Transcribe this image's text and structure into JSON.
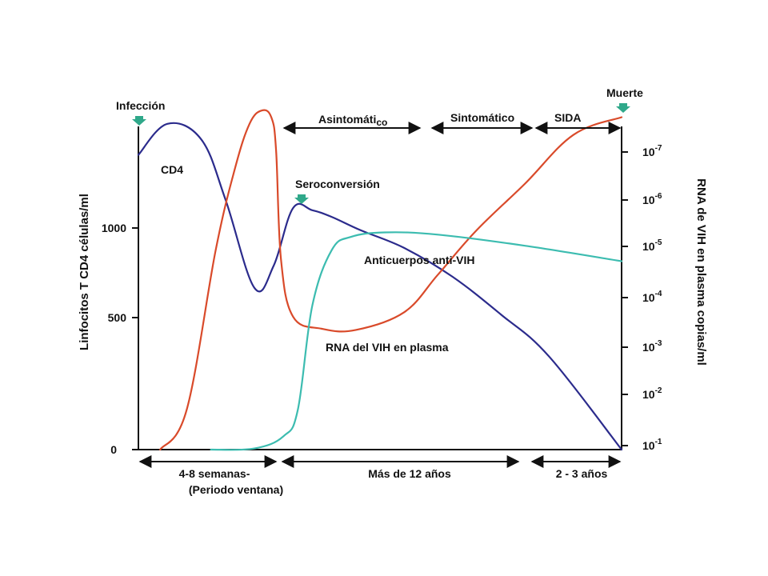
{
  "chart_data": {
    "type": "line",
    "title": "",
    "x_axis": {
      "visible": false,
      "ticks": []
    },
    "y_left": {
      "label": "Linfocitos T CD4 células/ml",
      "ticks": [
        "0",
        "500",
        "1000"
      ],
      "range": [
        0,
        1250
      ]
    },
    "y_right": {
      "label": "RNA de VIH en plasma copias/ml",
      "ticks": [
        {
          "base": "10",
          "exp": "-1"
        },
        {
          "base": "10",
          "exp": "-2"
        },
        {
          "base": "10",
          "exp": "-3"
        },
        {
          "base": "10",
          "exp": "-4"
        },
        {
          "base": "10",
          "exp": "-5"
        },
        {
          "base": "10",
          "exp": "-6"
        },
        {
          "base": "10",
          "exp": "-7"
        }
      ]
    },
    "series": [
      {
        "name": "CD4",
        "axis": "left",
        "color": "#2b2b8c",
        "x": [
          0,
          6,
          13,
          18,
          24,
          28,
          32,
          36,
          40,
          46,
          55,
          65,
          75,
          85,
          100
        ],
        "y": [
          1330,
          1470,
          1400,
          1130,
          730,
          830,
          1090,
          1080,
          1050,
          990,
          910,
          780,
          610,
          420,
          0
        ]
      },
      {
        "name": "RNA del VIH en plasma",
        "axis": "left",
        "color": "#d94a2a",
        "x": [
          4.5,
          10,
          16,
          20,
          23,
          25.5,
          27.5,
          28.5,
          29.5,
          32,
          38,
          45,
          55,
          62,
          70,
          80,
          90,
          100
        ],
        "y": [
          0,
          180,
          900,
          1270,
          1470,
          1530,
          1500,
          1350,
          860,
          600,
          545,
          540,
          620,
          790,
          990,
          1200,
          1420,
          1500
        ]
      },
      {
        "name": "Anticuerpos anti-VIH",
        "axis": "left",
        "color": "#3cbcb0",
        "x": [
          15,
          24,
          30,
          33,
          36,
          40,
          44,
          51,
          62,
          80,
          100
        ],
        "y": [
          0,
          5,
          60,
          180,
          650,
          900,
          960,
          980,
          970,
          920,
          850
        ]
      }
    ],
    "annotations": [
      {
        "id": "infeccion",
        "text": "Infección",
        "marker": "arrow-down"
      },
      {
        "id": "muerte",
        "text": "Muerte",
        "marker": "arrow-down"
      },
      {
        "id": "seroconversion",
        "text": "Seroconversión",
        "marker": "arrow-down"
      },
      {
        "id": "cd4",
        "text": "CD4"
      },
      {
        "id": "anticuerpos",
        "text": "Anticuerpos anti-VIH"
      },
      {
        "id": "rna",
        "text": "RNA del VIH en plasma"
      }
    ],
    "phases_top": [
      {
        "id": "asintomatico",
        "main": "Asintomáti",
        "sub": "co"
      },
      {
        "id": "sintomatico",
        "main": "Sintomático"
      },
      {
        "id": "sida",
        "main": "SIDA"
      }
    ],
    "periods_bottom": [
      {
        "id": "ventana",
        "lines": [
          "4-8 semanas-",
          "(Periodo ventana)"
        ]
      },
      {
        "id": "mas12",
        "lines": [
          "Más de 12 años"
        ]
      },
      {
        "id": "dos3",
        "lines": [
          "2 - 3 años"
        ]
      }
    ],
    "colors": {
      "axis": "#111111",
      "cd4": "#2b2b8c",
      "rna": "#d94a2a",
      "antibodies": "#3cbcb0",
      "marker": "#2fa88a"
    }
  }
}
